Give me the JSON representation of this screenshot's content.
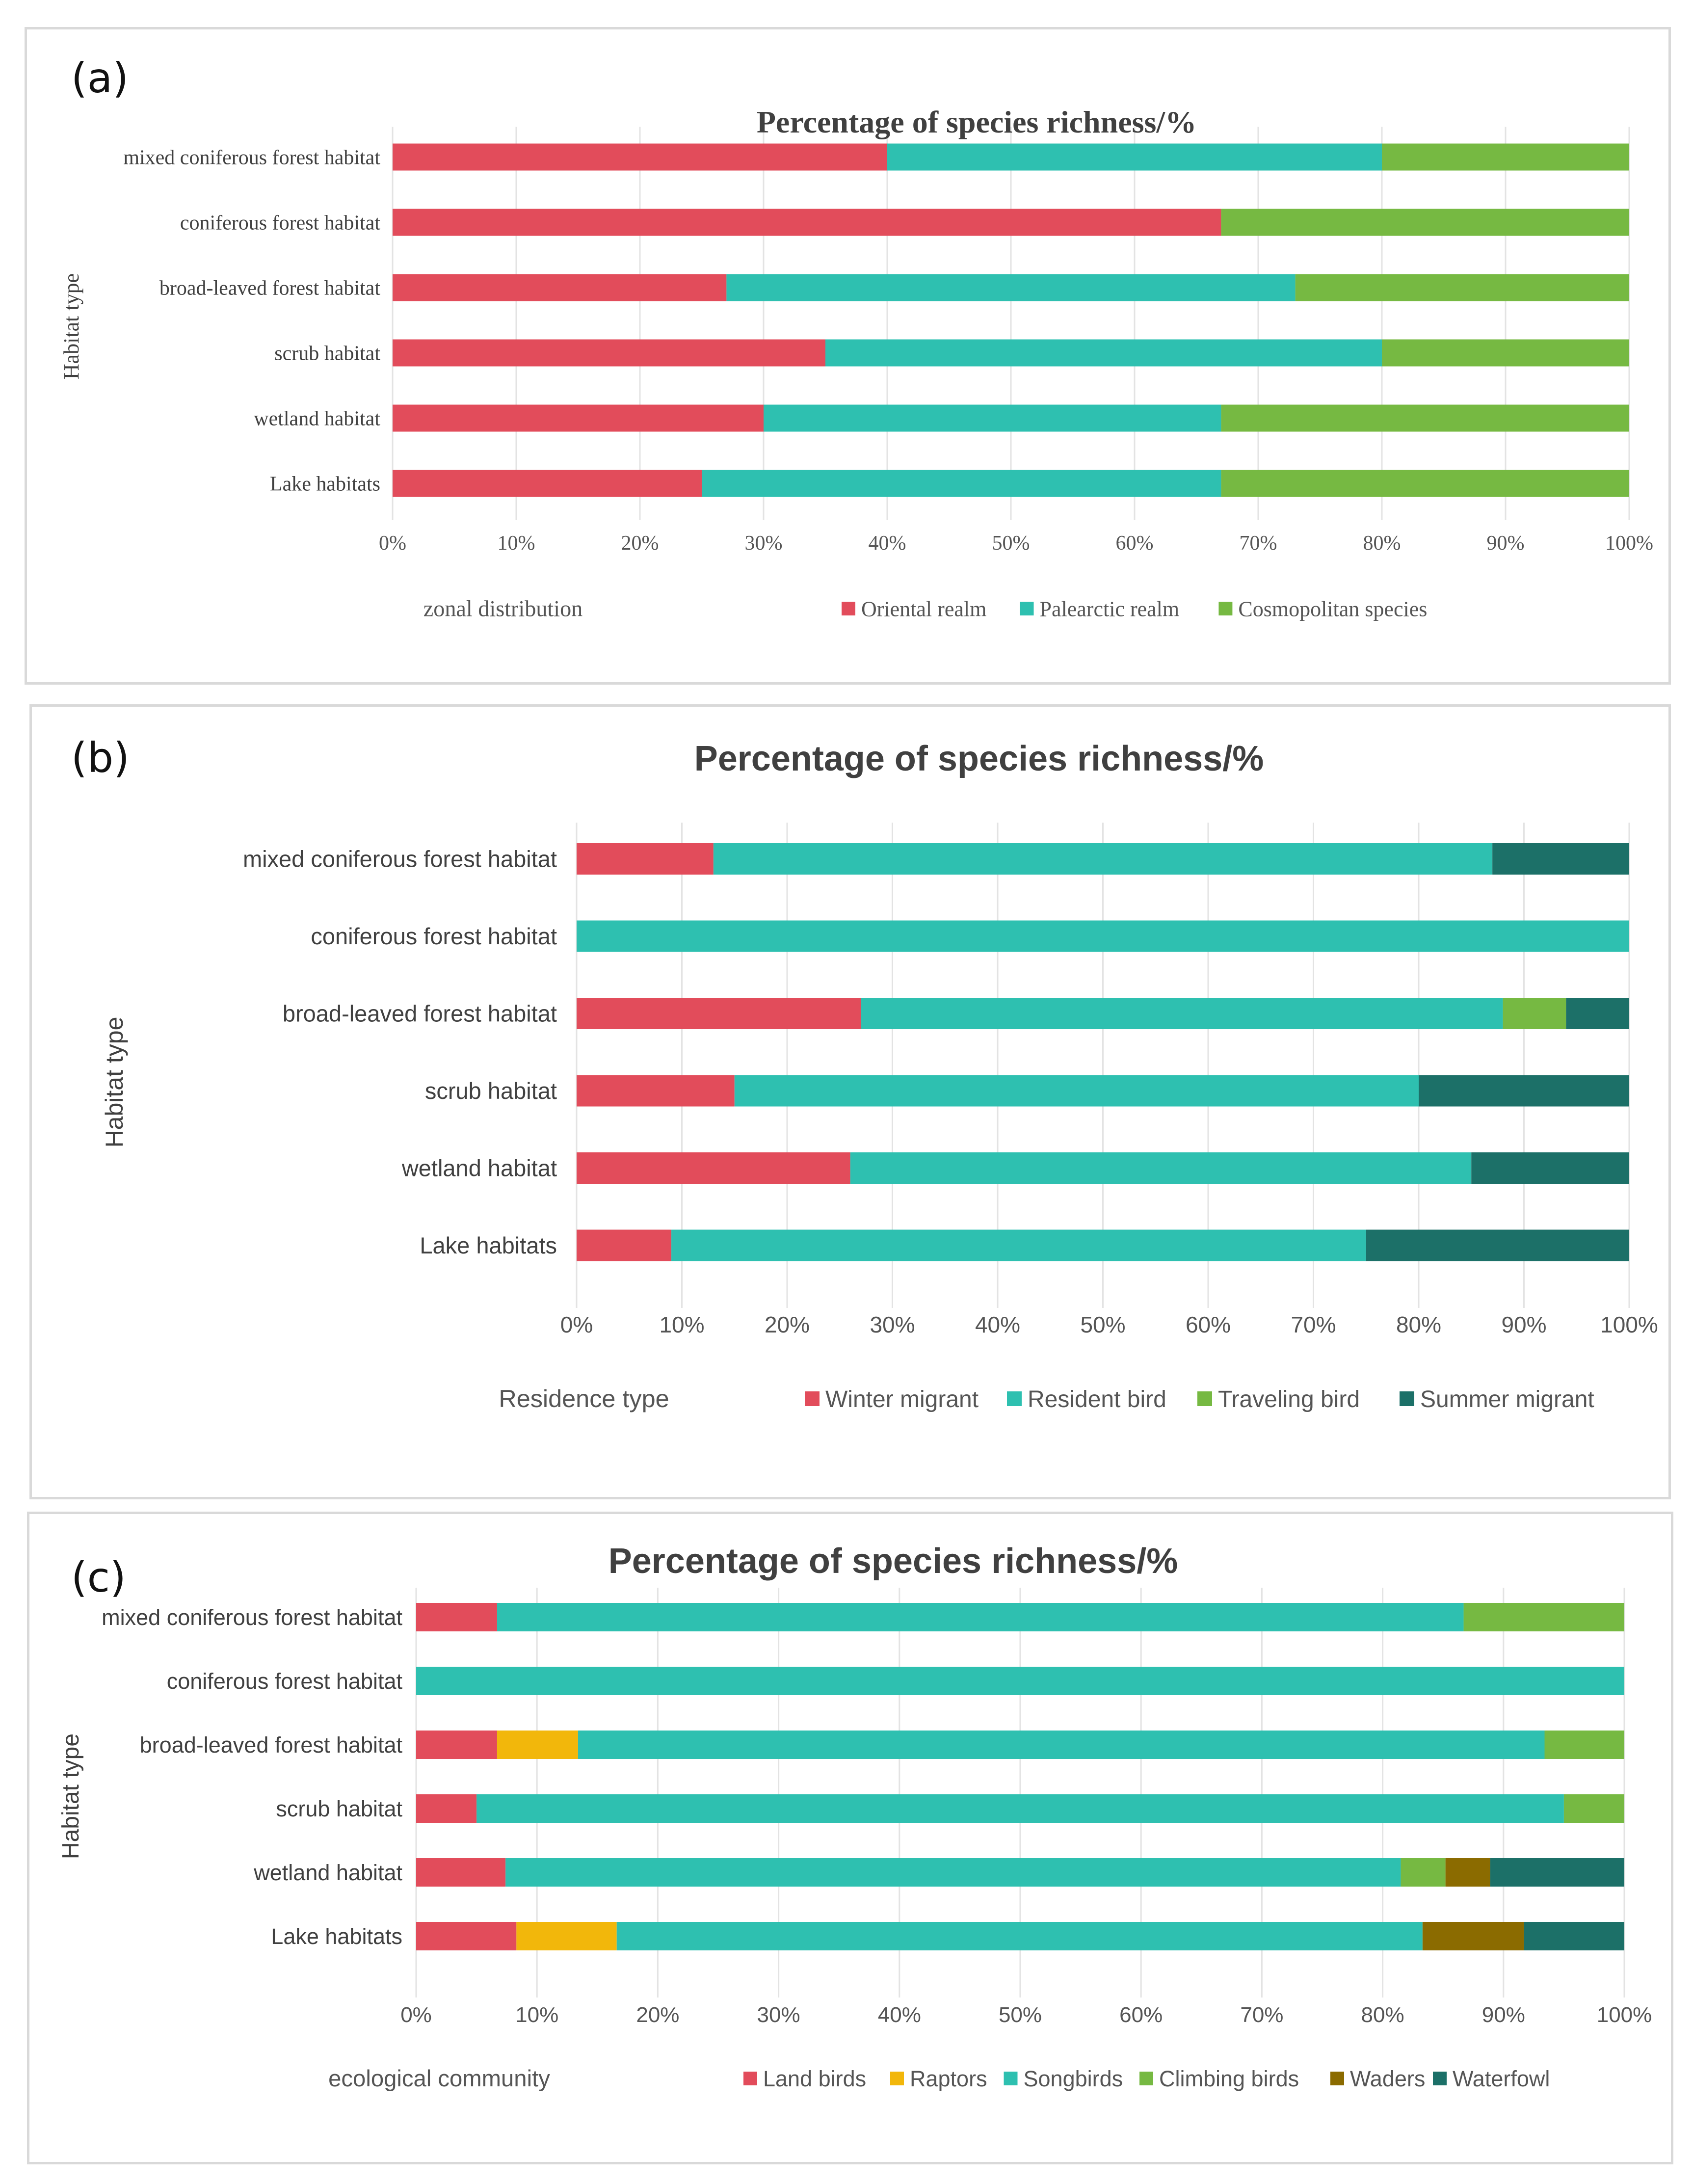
{
  "panels": [
    {
      "id": "a",
      "letter": "(a)",
      "style": "serif",
      "chart_data": {
        "type": "bar",
        "orientation": "horizontal",
        "stacked": true,
        "percent": true,
        "title": "Percentage of species richness/%",
        "ylabel": "Habitat type",
        "xlabel": "",
        "legend_title": "zonal distribution",
        "legend_position": "bottom",
        "xlim": [
          0,
          100
        ],
        "xticks": [
          "0%",
          "10%",
          "20%",
          "30%",
          "40%",
          "50%",
          "60%",
          "70%",
          "80%",
          "90%",
          "100%"
        ],
        "grid": true,
        "categories": [
          "mixed coniferous forest habitat",
          "coniferous forest habitat",
          "broad-leaved forest habitat",
          "scrub habitat",
          "wetland habitat",
          "Lake habitats"
        ],
        "series": [
          {
            "name": "Oriental realm",
            "color": "#e24c5b",
            "values": [
              40,
              67,
              27,
              35,
              30,
              25
            ]
          },
          {
            "name": "Palearctic realm",
            "color": "#2ec0b0",
            "values": [
              40,
              0,
              46,
              45,
              37,
              42
            ]
          },
          {
            "name": "Cosmopolitan species",
            "color": "#76b942",
            "values": [
              20,
              33,
              27,
              20,
              33,
              33
            ]
          }
        ]
      }
    },
    {
      "id": "b",
      "letter": "(b)",
      "style": "sans",
      "chart_data": {
        "type": "bar",
        "orientation": "horizontal",
        "stacked": true,
        "percent": true,
        "title": "Percentage of species richness/%",
        "ylabel": "Habitat type",
        "xlabel": "",
        "legend_title": "Residence type",
        "legend_position": "bottom",
        "xlim": [
          0,
          100
        ],
        "xticks": [
          "0%",
          "10%",
          "20%",
          "30%",
          "40%",
          "50%",
          "60%",
          "70%",
          "80%",
          "90%",
          "100%"
        ],
        "grid": true,
        "categories": [
          "mixed coniferous forest habitat",
          "coniferous forest habitat",
          "broad-leaved forest habitat",
          "scrub habitat",
          "wetland habitat",
          "Lake habitats"
        ],
        "series": [
          {
            "name": "Winter migrant",
            "color": "#e24c5b",
            "values": [
              13,
              0,
              27,
              15,
              26,
              9
            ]
          },
          {
            "name": "Resident bird",
            "color": "#2ec0b0",
            "values": [
              74,
              100,
              61,
              65,
              59,
              66
            ]
          },
          {
            "name": "Traveling bird",
            "color": "#76b942",
            "values": [
              0,
              0,
              6,
              0,
              0,
              0
            ]
          },
          {
            "name": "Summer migrant",
            "color": "#1c7068",
            "values": [
              13,
              0,
              6,
              20,
              15,
              25
            ]
          }
        ]
      }
    },
    {
      "id": "c",
      "letter": "(c)",
      "style": "sans",
      "chart_data": {
        "type": "bar",
        "orientation": "horizontal",
        "stacked": true,
        "percent": true,
        "title": "Percentage of species richness/%",
        "ylabel": "Habitat type",
        "xlabel": "",
        "legend_title": "ecological community",
        "legend_position": "bottom",
        "xlim": [
          0,
          100
        ],
        "xticks": [
          "0%",
          "10%",
          "20%",
          "30%",
          "40%",
          "50%",
          "60%",
          "70%",
          "80%",
          "90%",
          "100%"
        ],
        "grid": true,
        "categories": [
          "mixed coniferous forest habitat",
          "coniferous forest habitat",
          "broad-leaved forest habitat",
          "scrub habitat",
          "wetland habitat",
          "Lake habitats"
        ],
        "series": [
          {
            "name": "Land birds",
            "color": "#e24c5b",
            "values": [
              6.7,
              0,
              6.7,
              5,
              7.4,
              8.3
            ]
          },
          {
            "name": "Raptors",
            "color": "#f2b70b",
            "values": [
              0,
              0,
              6.7,
              0,
              0,
              8.3
            ]
          },
          {
            "name": "Songbirds",
            "color": "#2ec0b0",
            "values": [
              80,
              100,
              80,
              90,
              74.1,
              66.7
            ]
          },
          {
            "name": "Climbing birds",
            "color": "#76b942",
            "values": [
              13.3,
              0,
              6.6,
              5,
              3.7,
              0
            ]
          },
          {
            "name": "Waders",
            "color": "#8b6b00",
            "values": [
              0,
              0,
              0,
              0,
              3.7,
              8.4
            ]
          },
          {
            "name": "Waterfowl",
            "color": "#1c7068",
            "values": [
              0,
              0,
              0,
              0,
              11.1,
              8.3
            ]
          }
        ]
      }
    }
  ]
}
